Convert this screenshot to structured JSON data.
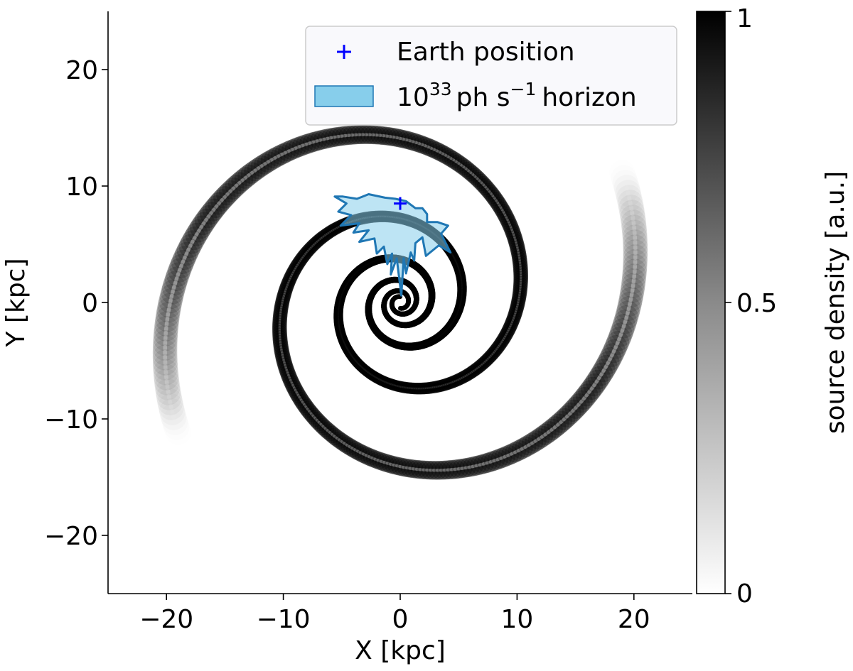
{
  "chart_data": {
    "type": "heatmap",
    "title": "",
    "xlabel": "X [kpc]",
    "ylabel": "Y [kpc]",
    "xlim": [
      -25,
      25
    ],
    "ylim": [
      -25,
      25
    ],
    "x_ticks": [
      -20,
      -10,
      0,
      10,
      20
    ],
    "y_ticks": [
      -20,
      -10,
      0,
      10,
      20
    ],
    "x_tick_labels": [
      "−20",
      "−10",
      "0",
      "10",
      "20"
    ],
    "y_tick_labels": [
      "−20",
      "−10",
      "0",
      "10",
      "20"
    ],
    "grid": false,
    "colormap": "gray_r",
    "colorbar": {
      "label": "source density [a.u.]",
      "range": [
        0,
        1
      ],
      "ticks": [
        0,
        0.5,
        1
      ],
      "tick_labels": [
        "0",
        "0.5",
        "1"
      ]
    },
    "legend": {
      "placement": "upper-right",
      "entries": [
        {
          "label": "Earth position",
          "marker": "+",
          "color": "#0000ff"
        },
        {
          "label_base": "10",
          "label_exp": "33",
          "label_unit": "ph s",
          "label_unit_exp": "−1",
          "label_tail": "horizon",
          "fill": "#87ceeb",
          "edge": "#1f77b4"
        }
      ]
    },
    "spiral_density": {
      "arms": 2,
      "pitch_angle_deg": 12,
      "r_min_kpc": 0.5,
      "r_max_kpc": 22
    },
    "earth_position": {
      "x": 0.0,
      "y": 8.5,
      "color": "#0000ff"
    },
    "horizon_polygon": {
      "fill": "#87ceeb",
      "edge": "#1f77b4",
      "points": [
        [
          -5.6,
          9.1
        ],
        [
          -4.9,
          9.1
        ],
        [
          -3.7,
          8.9
        ],
        [
          -2.7,
          9.3
        ],
        [
          -1.3,
          9.0
        ],
        [
          -0.4,
          8.9
        ],
        [
          0.5,
          8.7
        ],
        [
          1.3,
          8.1
        ],
        [
          1.9,
          8.1
        ],
        [
          2.3,
          7.6
        ],
        [
          2.3,
          6.9
        ],
        [
          3.2,
          6.9
        ],
        [
          4.1,
          6.6
        ],
        [
          3.5,
          5.9
        ],
        [
          4.3,
          4.3
        ],
        [
          3.3,
          4.9
        ],
        [
          2.2,
          4.0
        ],
        [
          1.9,
          5.6
        ],
        [
          1.3,
          5.1
        ],
        [
          1.2,
          3.6
        ],
        [
          0.9,
          4.3
        ],
        [
          0.5,
          2.5
        ],
        [
          0.3,
          3.8
        ],
        [
          0.1,
          0.6
        ],
        [
          -0.3,
          3.8
        ],
        [
          -0.8,
          2.4
        ],
        [
          -0.7,
          4.2
        ],
        [
          -1.1,
          3.3
        ],
        [
          -1.4,
          4.8
        ],
        [
          -2.0,
          4.2
        ],
        [
          -2.2,
          5.5
        ],
        [
          -3.5,
          5.2
        ],
        [
          -2.7,
          6.2
        ],
        [
          -4.0,
          6.0
        ],
        [
          -3.5,
          6.8
        ],
        [
          -5.1,
          6.6
        ],
        [
          -4.2,
          7.5
        ],
        [
          -5.3,
          7.8
        ],
        [
          -4.6,
          8.5
        ],
        [
          -5.6,
          9.1
        ]
      ]
    }
  }
}
